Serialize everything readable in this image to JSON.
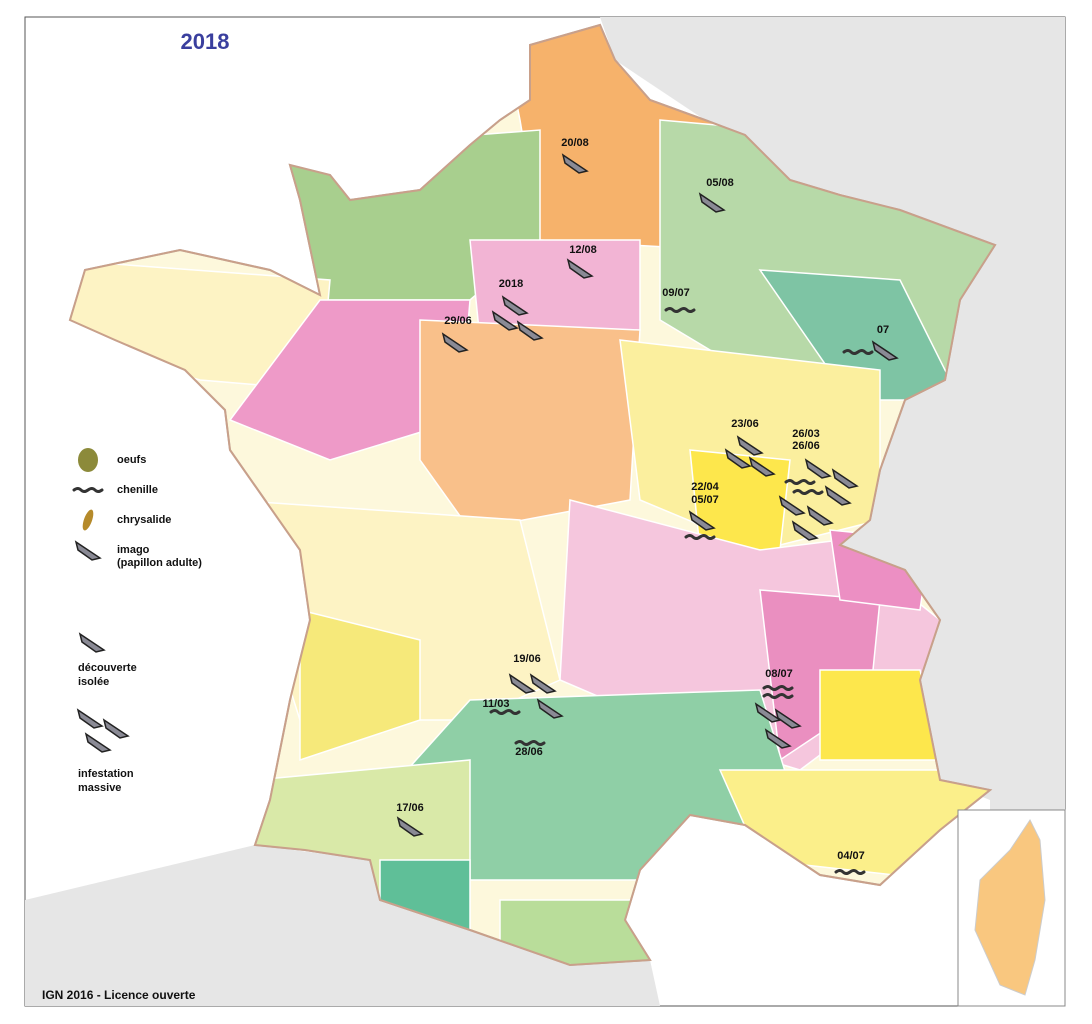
{
  "title": "2018",
  "legend": [
    {
      "lines": [
        "oeufs"
      ]
    },
    {
      "lines": [
        "chenille"
      ]
    },
    {
      "lines": [
        "chrysalide"
      ]
    },
    {
      "lines": [
        "imago",
        "(papillon adulte)"
      ]
    },
    {
      "lines": [
        "découverte",
        "isolée"
      ]
    },
    {
      "lines": [
        "infestation",
        "massive"
      ]
    }
  ],
  "annotations": [
    "20/08",
    "05/08",
    "12/08",
    "2018",
    "09/07",
    "29/06",
    "07",
    "23/06",
    "26/03",
    "26/06",
    "22/04",
    "05/07",
    "19/06",
    "08/07",
    "11/03",
    "28/06",
    "17/06",
    "04/07"
  ],
  "credit": "IGN 2016 - Licence ouverte"
}
